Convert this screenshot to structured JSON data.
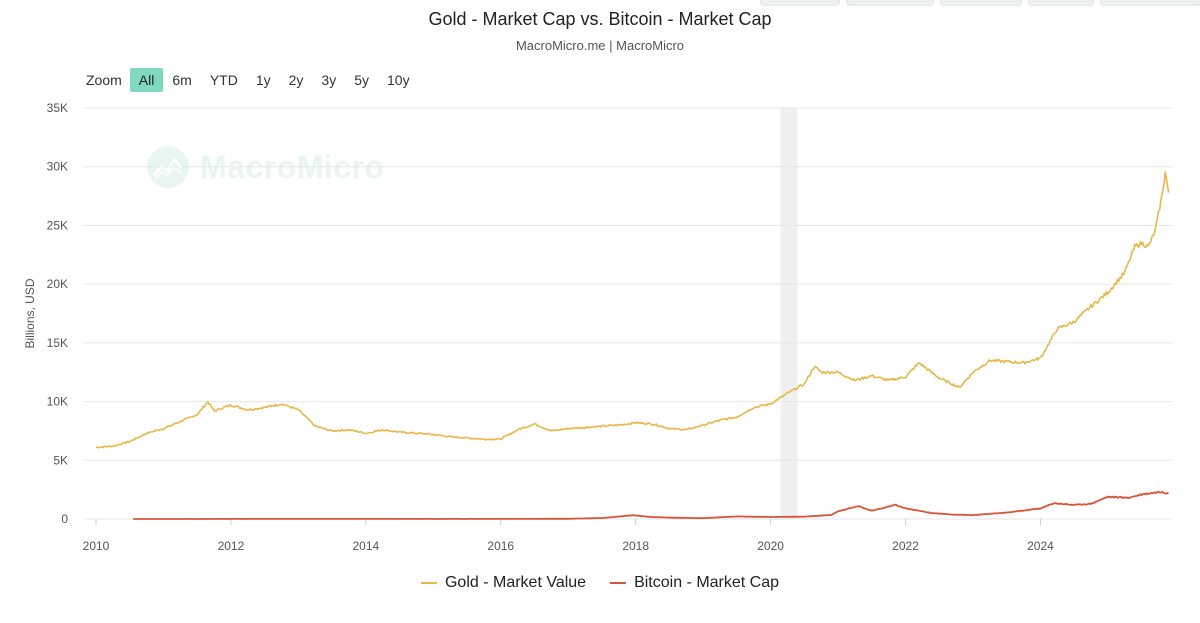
{
  "header": {
    "title": "Gold - Market Cap vs. Bitcoin - Market Cap",
    "subtitle": "MacroMicro.me | MacroMicro"
  },
  "zoom": {
    "label": "Zoom",
    "buttons": [
      "All",
      "6m",
      "YTD",
      "1y",
      "2y",
      "3y",
      "5y",
      "10y"
    ],
    "active": "All"
  },
  "watermark": {
    "text": "MacroMicro",
    "icon": "macromicro-logo-icon"
  },
  "colors": {
    "gold": "#e6b84a",
    "bitcoin": "#d9553a",
    "grid": "#e6e6e6",
    "zoom_active": "#7fd9c0",
    "band": "#f0f0f0"
  },
  "chart_data": {
    "type": "line",
    "ylabel": "Billions, USD",
    "ylim": [
      0,
      35000
    ],
    "yticks": [
      0,
      5000,
      10000,
      15000,
      20000,
      25000,
      30000,
      35000
    ],
    "ytick_labels": [
      "0",
      "5K",
      "10K",
      "15K",
      "20K",
      "25K",
      "30K",
      "35K"
    ],
    "xlim": [
      2010.0,
      2025.95
    ],
    "xticks": [
      2010,
      2012,
      2014,
      2016,
      2018,
      2020,
      2022,
      2024
    ],
    "xtick_labels": [
      "2010",
      "2012",
      "2014",
      "2016",
      "2018",
      "2020",
      "2022",
      "2024"
    ],
    "grid": true,
    "legend_position": "bottom",
    "shaded_band": [
      2020.15,
      2020.4
    ],
    "series": [
      {
        "name": "Gold - Market Value",
        "x": [
          2010.0,
          2010.25,
          2010.5,
          2010.75,
          2011.0,
          2011.25,
          2011.5,
          2011.66,
          2011.75,
          2012.0,
          2012.25,
          2012.5,
          2012.75,
          2013.0,
          2013.25,
          2013.5,
          2013.75,
          2014.0,
          2014.25,
          2014.5,
          2014.75,
          2015.0,
          2015.25,
          2015.5,
          2015.75,
          2016.0,
          2016.25,
          2016.5,
          2016.75,
          2017.0,
          2017.25,
          2017.5,
          2017.75,
          2018.0,
          2018.25,
          2018.5,
          2018.75,
          2019.0,
          2019.25,
          2019.5,
          2019.75,
          2020.0,
          2020.25,
          2020.5,
          2020.65,
          2020.75,
          2021.0,
          2021.25,
          2021.5,
          2021.75,
          2022.0,
          2022.2,
          2022.5,
          2022.8,
          2023.0,
          2023.25,
          2023.5,
          2023.75,
          2024.0,
          2024.25,
          2024.5,
          2024.75,
          2025.0,
          2025.25,
          2025.4,
          2025.5,
          2025.6,
          2025.7,
          2025.8,
          2025.85,
          2025.9
        ],
        "values": [
          6100,
          6200,
          6600,
          7300,
          7700,
          8300,
          8900,
          10000,
          9200,
          9700,
          9300,
          9500,
          9800,
          9300,
          7900,
          7500,
          7600,
          7300,
          7600,
          7400,
          7300,
          7200,
          7000,
          6900,
          6800,
          6800,
          7600,
          8100,
          7500,
          7700,
          7800,
          7900,
          8000,
          8200,
          8100,
          7700,
          7600,
          8000,
          8400,
          8700,
          9500,
          9800,
          10700,
          11500,
          13000,
          12500,
          12500,
          11800,
          12200,
          11800,
          12100,
          13300,
          12000,
          11200,
          12500,
          13500,
          13400,
          13300,
          13700,
          16200,
          16800,
          18100,
          19300,
          21000,
          23200,
          23500,
          23200,
          24500,
          27500,
          29500,
          27800
        ]
      },
      {
        "name": "Bitcoin - Market Cap",
        "x": [
          2010.55,
          2011.0,
          2012.0,
          2013.0,
          2014.0,
          2015.0,
          2016.0,
          2017.0,
          2017.5,
          2017.97,
          2018.2,
          2018.5,
          2019.0,
          2019.5,
          2020.0,
          2020.5,
          2020.9,
          2021.0,
          2021.3,
          2021.5,
          2021.85,
          2022.0,
          2022.4,
          2022.7,
          2023.0,
          2023.5,
          2024.0,
          2024.2,
          2024.5,
          2024.75,
          2025.0,
          2025.3,
          2025.5,
          2025.75,
          2025.9
        ],
        "values": [
          0,
          0,
          5,
          10,
          10,
          4,
          8,
          20,
          80,
          320,
          180,
          120,
          70,
          220,
          170,
          200,
          350,
          650,
          1100,
          700,
          1200,
          900,
          500,
          380,
          330,
          550,
          900,
          1350,
          1200,
          1300,
          1900,
          1800,
          2100,
          2300,
          2200
        ]
      }
    ]
  }
}
